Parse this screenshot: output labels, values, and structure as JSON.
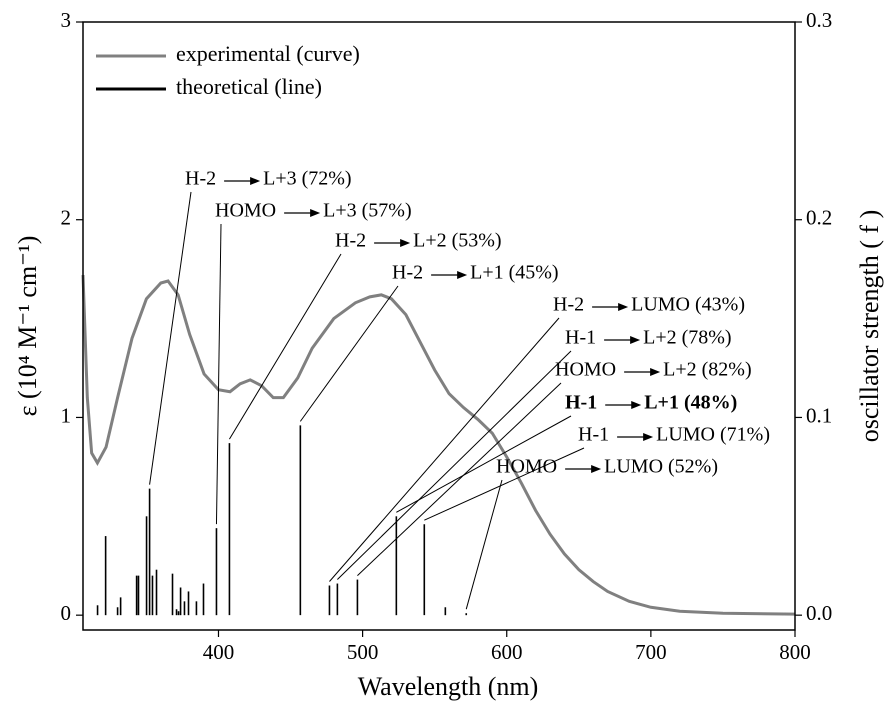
{
  "chart_data": {
    "type": "line",
    "x_label": "Wavelength (nm)",
    "y_label": "ε (10⁴ M⁻¹ cm⁻¹)",
    "y2_label": "oscillator strength ( f )",
    "xlim": [
      306,
      800
    ],
    "xticks": [
      400,
      500,
      600,
      700,
      800
    ],
    "ylim": [
      -0.075,
      3
    ],
    "yticks": [
      0,
      1,
      2,
      3
    ],
    "y2lim": [
      -0.0075,
      0.3
    ],
    "y2ticks": [
      {
        "value": 0,
        "label": "0.0"
      },
      {
        "value": 0.1,
        "label": "0.1"
      },
      {
        "value": 0.2,
        "label": "0.2"
      },
      {
        "value": 0.3,
        "label": "0.3"
      }
    ],
    "legend": "upper left",
    "series": [
      {
        "name": "experimental (curve)",
        "color": "#808080",
        "type": "line",
        "x": [
          306,
          309,
          312,
          316,
          322,
          330,
          340,
          350,
          360,
          365,
          372,
          380,
          390,
          400,
          408,
          415,
          422,
          430,
          438,
          445,
          455,
          465,
          480,
          495,
          505,
          513,
          520,
          530,
          540,
          550,
          560,
          570,
          580,
          590,
          600,
          610,
          620,
          630,
          640,
          650,
          660,
          670,
          685,
          700,
          720,
          750,
          800
        ],
        "values": [
          1.72,
          1.1,
          0.82,
          0.77,
          0.85,
          1.1,
          1.4,
          1.6,
          1.68,
          1.69,
          1.62,
          1.42,
          1.22,
          1.14,
          1.13,
          1.17,
          1.19,
          1.16,
          1.1,
          1.1,
          1.2,
          1.35,
          1.5,
          1.58,
          1.61,
          1.62,
          1.6,
          1.52,
          1.38,
          1.24,
          1.12,
          1.05,
          0.99,
          0.92,
          0.8,
          0.67,
          0.53,
          0.41,
          0.31,
          0.23,
          0.17,
          0.12,
          0.07,
          0.04,
          0.02,
          0.01,
          0.005
        ]
      },
      {
        "name": "theoretical (line)",
        "color": "#000000",
        "type": "stem",
        "axis": "y2",
        "x": [
          316.1,
          321.7,
          330.0,
          332.1,
          343.2,
          344.5,
          350.1,
          352.2,
          354.2,
          357.0,
          368.1,
          370.9,
          372.3,
          373.7,
          376.4,
          379.2,
          384.7,
          389.6,
          398.6,
          407.6,
          456.8,
          477.0,
          482.5,
          496.4,
          523.4,
          542.8,
          557.4,
          571.9
        ],
        "values": [
          0.005,
          0.04,
          0.004,
          0.009,
          0.02,
          0.02,
          0.05,
          0.064,
          0.02,
          0.023,
          0.021,
          0.003,
          0.002,
          0.014,
          0.007,
          0.012,
          0.007,
          0.016,
          0.044,
          0.087,
          0.096,
          0.015,
          0.016,
          0.018,
          0.05,
          0.046,
          0.004,
          0.001
        ]
      }
    ],
    "annotations": [
      {
        "from": "H-2",
        "to": "L+3 (72%)"
      },
      {
        "from": "HOMO",
        "to": "L+3 (57%)"
      },
      {
        "from": "H-2",
        "to": "L+2 (53%)"
      },
      {
        "from": "H-2",
        "to": "L+1 (45%)"
      },
      {
        "from": "H-2",
        "to": "LUMO (43%)"
      },
      {
        "from": "H-1",
        "to": "L+2 (78%)"
      },
      {
        "from": "HOMO",
        "to": "L+2 (82%)"
      },
      {
        "from": "H-1",
        "to": "L+1 (48%)"
      },
      {
        "from": "H-1",
        "to": "LUMO (71%)"
      },
      {
        "from": "HOMO",
        "to": "LUMO (52%)"
      }
    ]
  }
}
